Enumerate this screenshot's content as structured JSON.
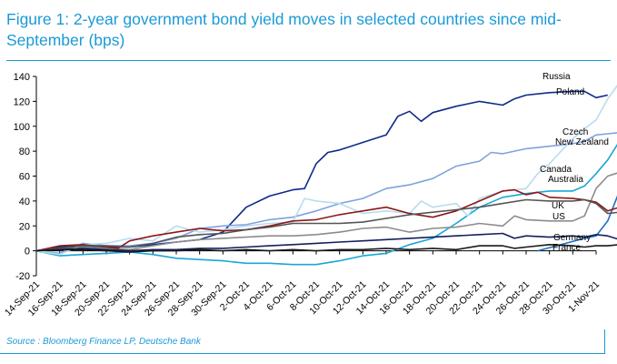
{
  "title": "Figure 1: 2-year government bond yield moves in selected countries since mid-September (bps)",
  "source": "Source : Bloomberg Finance LP, Deutsche Bank",
  "chart_data": {
    "type": "line",
    "title": "Figure 1: 2-year government bond yield moves in selected countries since mid-September (bps)",
    "xlabel": "",
    "ylabel": "",
    "ylim": [
      -20,
      140
    ],
    "yticks": [
      -20,
      0,
      20,
      40,
      60,
      80,
      100,
      120,
      140
    ],
    "grid": false,
    "legend": "labels at line ends (right)",
    "x_ticks": [
      "14-Sep-21",
      "16-Sep-21",
      "18-Sep-21",
      "20-Sep-21",
      "22-Sep-21",
      "24-Sep-21",
      "26-Sep-21",
      "28-Sep-21",
      "30-Sep-21",
      "2-Oct-21",
      "4-Oct-21",
      "6-Oct-21",
      "8-Oct-21",
      "10-Oct-21",
      "12-Oct-21",
      "14-Oct-21",
      "16-Oct-21",
      "18-Oct-21",
      "20-Oct-21",
      "22-Oct-21",
      "24-Oct-21",
      "26-Oct-21",
      "28-Oct-21",
      "30-Oct-21",
      "1-Nov-21"
    ],
    "series": [
      {
        "name": "Russia",
        "color": "#0d2a8a",
        "points": [
          [
            0,
            0
          ],
          [
            2,
            3
          ],
          [
            4,
            4
          ],
          [
            6,
            3
          ],
          [
            8,
            3
          ],
          [
            10,
            5
          ],
          [
            12,
            7
          ],
          [
            14,
            9
          ],
          [
            16,
            15
          ],
          [
            18,
            35
          ],
          [
            20,
            44
          ],
          [
            22,
            49
          ],
          [
            23,
            50
          ],
          [
            24,
            70
          ],
          [
            25,
            79
          ],
          [
            26,
            81
          ],
          [
            28,
            87
          ],
          [
            30,
            93
          ],
          [
            31,
            108
          ],
          [
            32,
            112
          ],
          [
            33,
            104
          ],
          [
            34,
            111
          ],
          [
            36,
            116
          ],
          [
            38,
            120
          ],
          [
            40,
            117
          ],
          [
            41,
            122
          ],
          [
            42,
            125
          ],
          [
            44,
            127
          ],
          [
            46,
            128
          ],
          [
            47,
            128
          ],
          [
            48,
            123
          ],
          [
            49,
            125
          ]
        ]
      },
      {
        "name": "Poland",
        "color": "#1e6fc4",
        "points": [
          [
            43,
            0
          ],
          [
            47,
            10
          ],
          [
            48,
            12
          ],
          [
            49,
            24
          ],
          [
            50,
            48
          ],
          [
            50.8,
            128
          ]
        ]
      },
      {
        "name": "Czech",
        "color": "#7fa2de",
        "points": [
          [
            0,
            0
          ],
          [
            2,
            -2
          ],
          [
            4,
            6
          ],
          [
            6,
            4
          ],
          [
            8,
            4
          ],
          [
            10,
            6
          ],
          [
            12,
            10
          ],
          [
            14,
            18
          ],
          [
            16,
            20
          ],
          [
            18,
            21
          ],
          [
            20,
            25
          ],
          [
            22,
            27
          ],
          [
            24,
            32
          ],
          [
            26,
            38
          ],
          [
            28,
            42
          ],
          [
            30,
            50
          ],
          [
            32,
            53
          ],
          [
            34,
            58
          ],
          [
            36,
            68
          ],
          [
            38,
            72
          ],
          [
            39,
            79
          ],
          [
            40,
            78
          ],
          [
            42,
            82
          ],
          [
            44,
            84
          ],
          [
            46,
            86
          ],
          [
            47,
            88
          ],
          [
            48,
            93
          ],
          [
            49,
            94
          ],
          [
            50,
            95
          ]
        ]
      },
      {
        "name": "New Zealand",
        "color": "#1ba6d6",
        "points": [
          [
            0,
            0
          ],
          [
            2,
            -4
          ],
          [
            4,
            -3
          ],
          [
            6,
            -2
          ],
          [
            8,
            -1
          ],
          [
            10,
            -3
          ],
          [
            12,
            -6
          ],
          [
            14,
            -7
          ],
          [
            16,
            -8
          ],
          [
            18,
            -10
          ],
          [
            20,
            -10
          ],
          [
            22,
            -11
          ],
          [
            24,
            -11
          ],
          [
            26,
            -8
          ],
          [
            28,
            -4
          ],
          [
            30,
            -2
          ],
          [
            32,
            5
          ],
          [
            34,
            10
          ],
          [
            36,
            22
          ],
          [
            38,
            35
          ],
          [
            40,
            43
          ],
          [
            42,
            46
          ],
          [
            44,
            48
          ],
          [
            46,
            48
          ],
          [
            47,
            52
          ],
          [
            48,
            62
          ],
          [
            49,
            73
          ],
          [
            50,
            88
          ]
        ]
      },
      {
        "name": "Canada",
        "color": "#8c8c8c",
        "points": [
          [
            0,
            0
          ],
          [
            2,
            2
          ],
          [
            4,
            3
          ],
          [
            6,
            2
          ],
          [
            8,
            1
          ],
          [
            10,
            4
          ],
          [
            12,
            7
          ],
          [
            14,
            9
          ],
          [
            16,
            10
          ],
          [
            18,
            11
          ],
          [
            20,
            12
          ],
          [
            22,
            12
          ],
          [
            24,
            13
          ],
          [
            26,
            15
          ],
          [
            28,
            18
          ],
          [
            30,
            19
          ],
          [
            32,
            15
          ],
          [
            34,
            18
          ],
          [
            36,
            19
          ],
          [
            38,
            22
          ],
          [
            40,
            20
          ],
          [
            41,
            28
          ],
          [
            42,
            25
          ],
          [
            44,
            24
          ],
          [
            46,
            24
          ],
          [
            47,
            28
          ],
          [
            48,
            50
          ],
          [
            49,
            60
          ],
          [
            50,
            63
          ]
        ]
      },
      {
        "name": "Australia",
        "color": "#b8dcf0",
        "points": [
          [
            0,
            0
          ],
          [
            2,
            -3
          ],
          [
            4,
            5
          ],
          [
            6,
            6
          ],
          [
            8,
            10
          ],
          [
            10,
            8
          ],
          [
            12,
            20
          ],
          [
            14,
            15
          ],
          [
            16,
            17
          ],
          [
            18,
            20
          ],
          [
            20,
            22
          ],
          [
            22,
            23
          ],
          [
            23,
            42
          ],
          [
            24,
            40
          ],
          [
            26,
            38
          ],
          [
            28,
            30
          ],
          [
            30,
            32
          ],
          [
            32,
            30
          ],
          [
            33,
            40
          ],
          [
            34,
            35
          ],
          [
            36,
            38
          ],
          [
            37,
            28
          ],
          [
            38,
            42
          ],
          [
            40,
            48
          ],
          [
            42,
            50
          ],
          [
            43,
            62
          ],
          [
            44,
            70
          ],
          [
            46,
            90
          ],
          [
            47,
            98
          ],
          [
            48,
            105
          ],
          [
            49,
            122
          ],
          [
            50,
            135
          ]
        ]
      },
      {
        "name": "UK",
        "color": "#8b1a1a",
        "points": [
          [
            0,
            0
          ],
          [
            2,
            4
          ],
          [
            4,
            5
          ],
          [
            6,
            3
          ],
          [
            7,
            2
          ],
          [
            8,
            8
          ],
          [
            10,
            12
          ],
          [
            12,
            15
          ],
          [
            14,
            18
          ],
          [
            16,
            16
          ],
          [
            18,
            17
          ],
          [
            20,
            20
          ],
          [
            22,
            24
          ],
          [
            24,
            25
          ],
          [
            26,
            29
          ],
          [
            28,
            32
          ],
          [
            30,
            35
          ],
          [
            32,
            30
          ],
          [
            34,
            27
          ],
          [
            36,
            32
          ],
          [
            38,
            40
          ],
          [
            40,
            48
          ],
          [
            41,
            49
          ],
          [
            42,
            45
          ],
          [
            43,
            47
          ],
          [
            44,
            43
          ],
          [
            46,
            42
          ],
          [
            47,
            41
          ],
          [
            48,
            39
          ],
          [
            49,
            32
          ],
          [
            50,
            35
          ]
        ]
      },
      {
        "name": "US",
        "color": "#555555",
        "points": [
          [
            0,
            0
          ],
          [
            2,
            2
          ],
          [
            4,
            4
          ],
          [
            6,
            4
          ],
          [
            8,
            3
          ],
          [
            10,
            6
          ],
          [
            12,
            11
          ],
          [
            14,
            13
          ],
          [
            16,
            14
          ],
          [
            18,
            17
          ],
          [
            20,
            19
          ],
          [
            22,
            22
          ],
          [
            24,
            22
          ],
          [
            26,
            22
          ],
          [
            28,
            23
          ],
          [
            30,
            26
          ],
          [
            32,
            29
          ],
          [
            34,
            31
          ],
          [
            36,
            33
          ],
          [
            38,
            35
          ],
          [
            40,
            38
          ],
          [
            42,
            41
          ],
          [
            44,
            40
          ],
          [
            46,
            40
          ],
          [
            47,
            41
          ],
          [
            48,
            38
          ],
          [
            49,
            30
          ],
          [
            50,
            31
          ]
        ]
      },
      {
        "name": "Germany",
        "color": "#15205c",
        "points": [
          [
            0,
            0
          ],
          [
            2,
            1
          ],
          [
            4,
            2
          ],
          [
            6,
            1
          ],
          [
            8,
            0
          ],
          [
            10,
            1
          ],
          [
            12,
            1
          ],
          [
            14,
            2
          ],
          [
            16,
            2
          ],
          [
            18,
            3
          ],
          [
            20,
            4
          ],
          [
            22,
            5
          ],
          [
            24,
            6
          ],
          [
            26,
            7
          ],
          [
            28,
            8
          ],
          [
            30,
            9
          ],
          [
            32,
            10
          ],
          [
            34,
            11
          ],
          [
            36,
            12
          ],
          [
            38,
            13
          ],
          [
            40,
            14
          ],
          [
            41,
            10
          ],
          [
            42,
            12
          ],
          [
            44,
            11
          ],
          [
            46,
            12
          ],
          [
            47,
            11
          ],
          [
            48,
            13
          ],
          [
            49,
            12
          ],
          [
            50,
            9
          ]
        ]
      },
      {
        "name": "France",
        "color": "#1a1a1a",
        "points": [
          [
            0,
            0
          ],
          [
            2,
            1
          ],
          [
            4,
            1
          ],
          [
            6,
            0
          ],
          [
            8,
            -1
          ],
          [
            10,
            0
          ],
          [
            12,
            0
          ],
          [
            14,
            1
          ],
          [
            16,
            0
          ],
          [
            18,
            1
          ],
          [
            20,
            0
          ],
          [
            22,
            1
          ],
          [
            24,
            0
          ],
          [
            26,
            1
          ],
          [
            28,
            1
          ],
          [
            30,
            2
          ],
          [
            32,
            1
          ],
          [
            34,
            2
          ],
          [
            36,
            1
          ],
          [
            38,
            4
          ],
          [
            40,
            4
          ],
          [
            41,
            2
          ],
          [
            42,
            3
          ],
          [
            44,
            5
          ],
          [
            46,
            4
          ],
          [
            47,
            3
          ],
          [
            48,
            4
          ],
          [
            49,
            4
          ],
          [
            50,
            5
          ]
        ]
      }
    ],
    "annotations": [
      {
        "text": "Russia"
      },
      {
        "text": "Poland"
      },
      {
        "text": "Czech"
      },
      {
        "text": "New Zealand"
      },
      {
        "text": "Canada"
      },
      {
        "text": "Australia"
      },
      {
        "text": "UK"
      },
      {
        "text": "US"
      },
      {
        "text": "Germany"
      },
      {
        "text": "France"
      }
    ]
  }
}
